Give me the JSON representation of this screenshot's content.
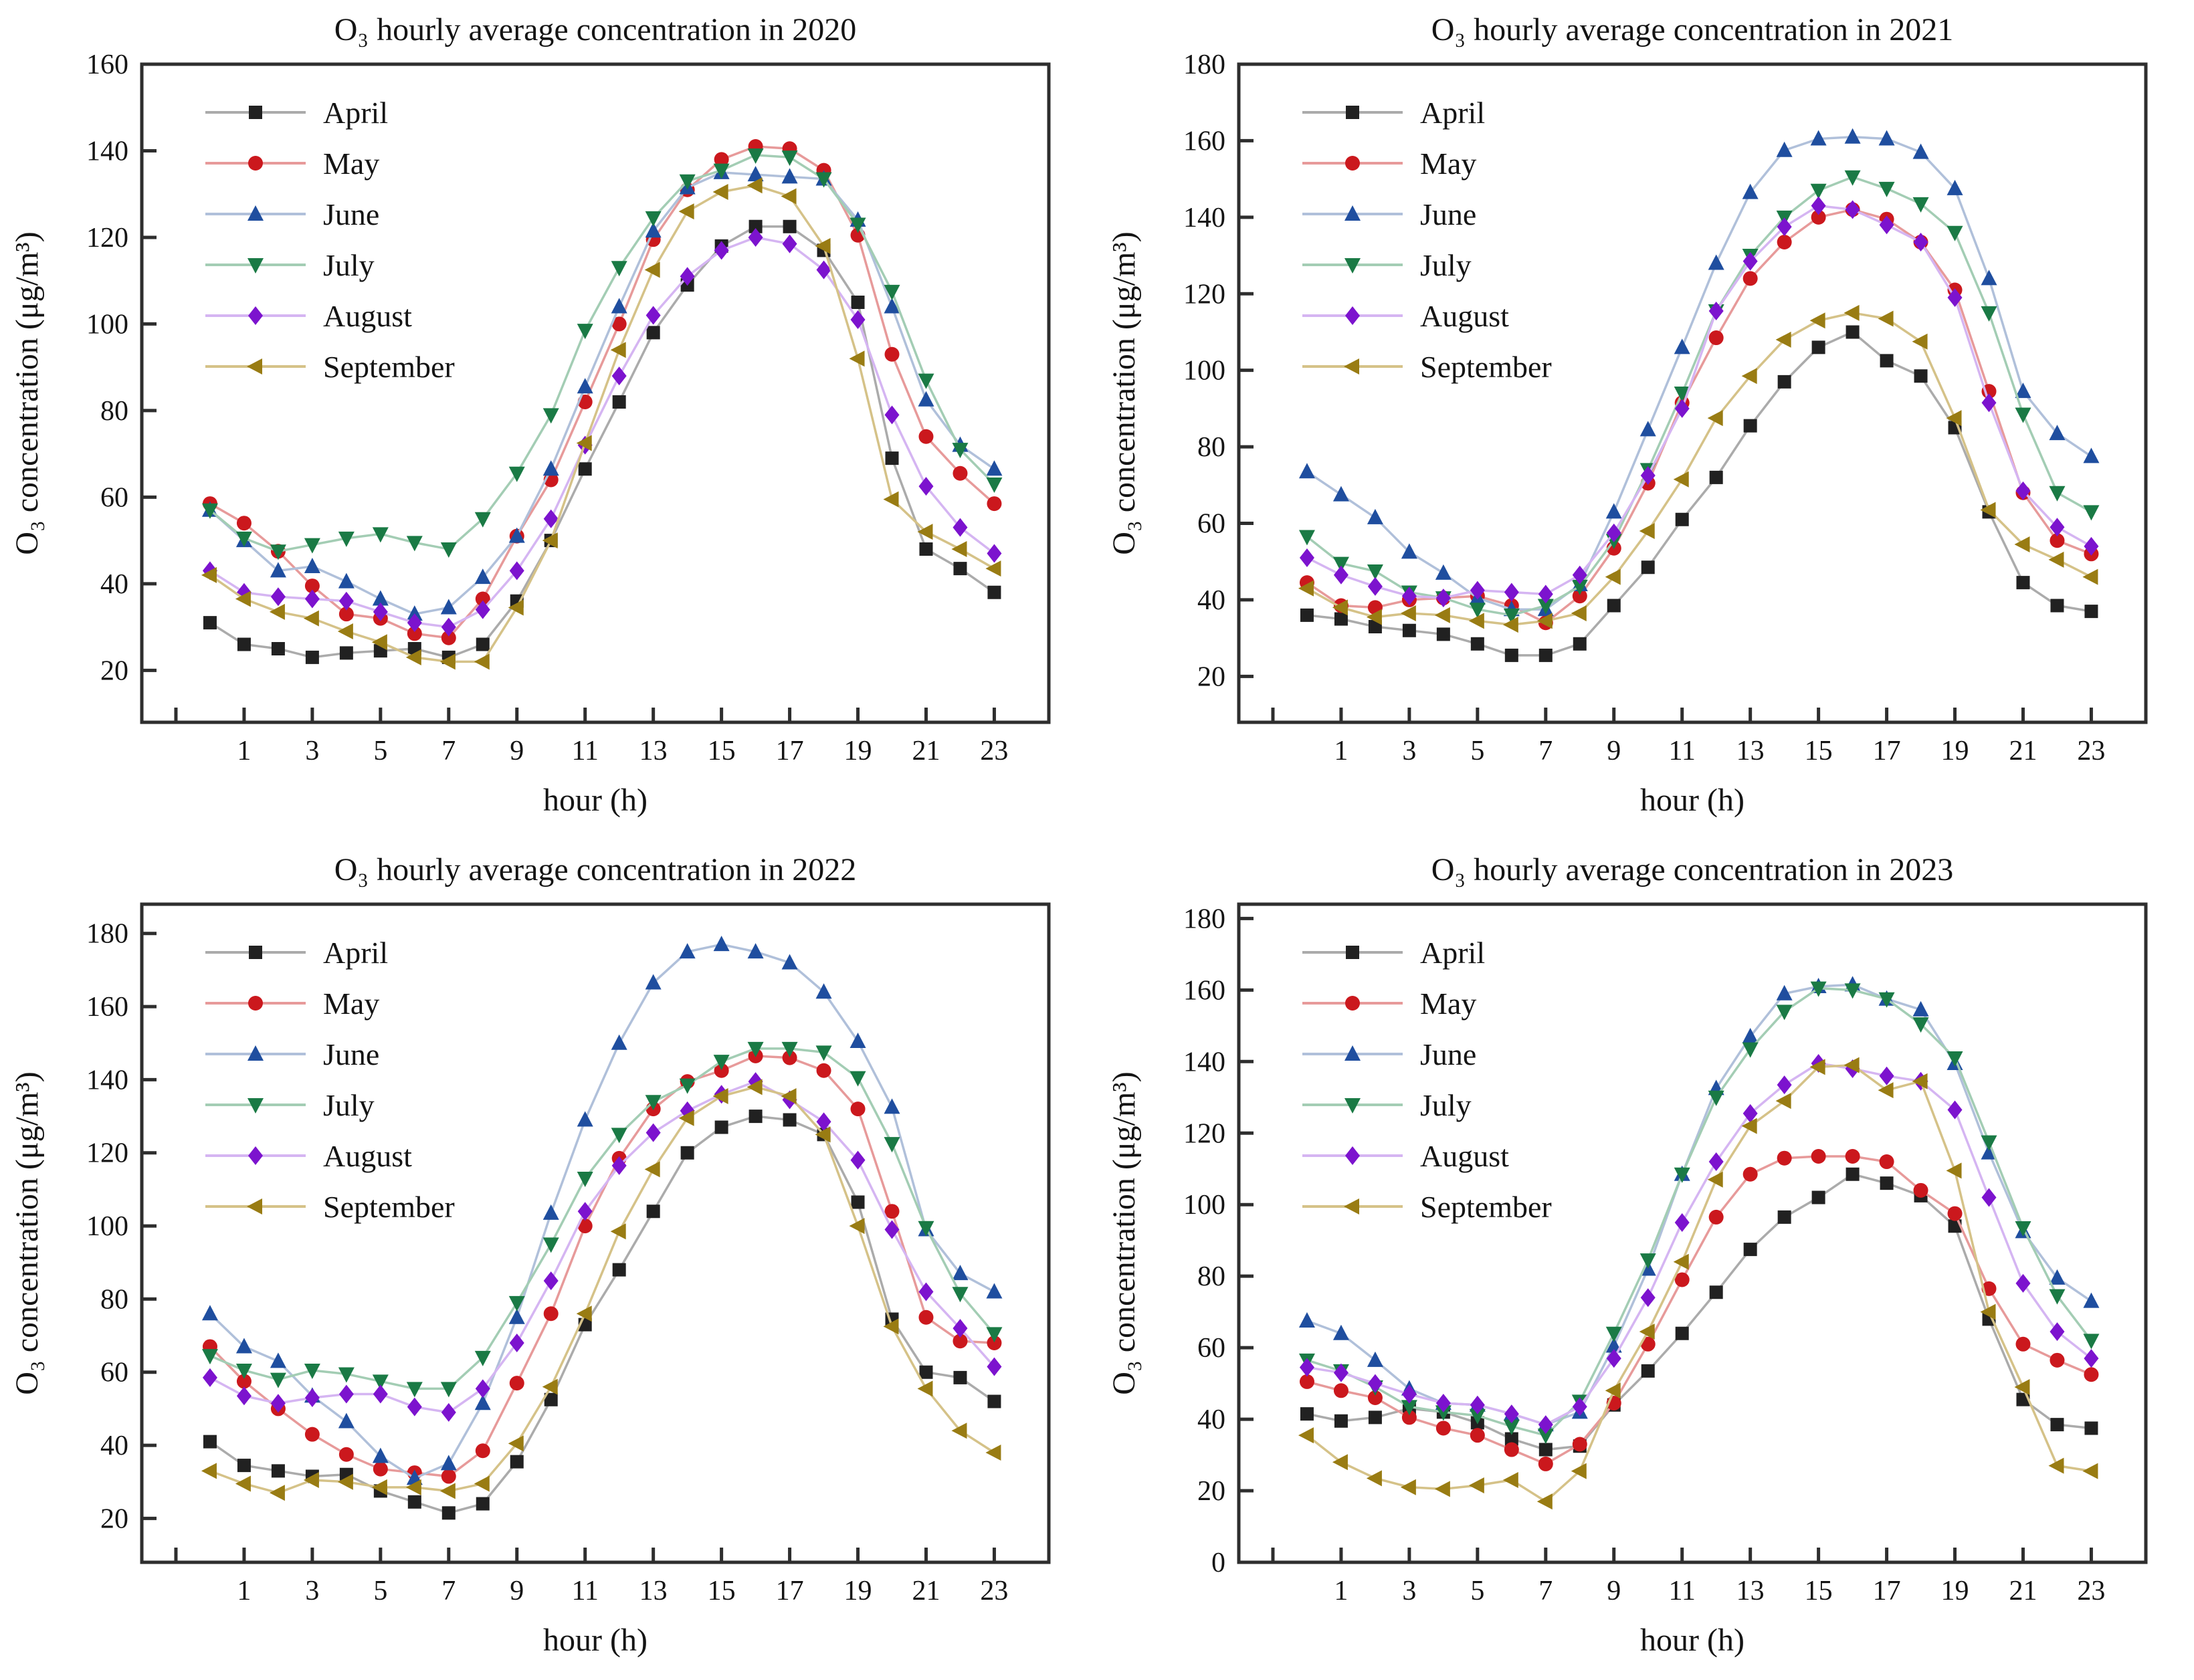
{
  "figure": {
    "xlabel": "hour (h)",
    "ylabel": "O₃ concentration (μg/m³)",
    "axis_color": "#2e2e2e",
    "text_color": "#141414"
  },
  "months_style": [
    {
      "name": "April",
      "marker": "square",
      "marker_color": "#212121",
      "line_color": "#ababab"
    },
    {
      "name": "May",
      "marker": "circle",
      "marker_color": "#cb181d",
      "line_color": "#e79a9a"
    },
    {
      "name": "June",
      "marker": "triangle-up",
      "marker_color": "#1f4e9f",
      "line_color": "#b0c0da"
    },
    {
      "name": "July",
      "marker": "triangle-down",
      "marker_color": "#1a7a45",
      "line_color": "#a3cdb4"
    },
    {
      "name": "August",
      "marker": "diamond",
      "marker_color": "#7c13ce",
      "line_color": "#d5b5f2"
    },
    {
      "name": "September",
      "marker": "triangle-left",
      "marker_color": "#997c13",
      "line_color": "#d5c288"
    }
  ],
  "chart_data": [
    {
      "type": "line",
      "title": "O₃ hourly average concentration in 2020",
      "xlabel": "hour (h)",
      "ylabel": "O₃ concentration (μg/m³)",
      "x": [
        0,
        1,
        2,
        3,
        4,
        5,
        6,
        7,
        8,
        9,
        10,
        11,
        12,
        13,
        14,
        15,
        16,
        17,
        18,
        19,
        20,
        21,
        22,
        23
      ],
      "xtick_labels": [
        1,
        3,
        5,
        7,
        9,
        11,
        13,
        15,
        17,
        19,
        21,
        23
      ],
      "ylim": [
        8,
        160
      ],
      "yticks": [
        20,
        40,
        60,
        80,
        100,
        120,
        140,
        160
      ],
      "legend_position": "upper-left",
      "grid": false,
      "series": [
        {
          "name": "April",
          "values": [
            31,
            26,
            25,
            23,
            24,
            24.5,
            25,
            23,
            26,
            36,
            50,
            66.5,
            82,
            98,
            109,
            118,
            122.5,
            122.5,
            117,
            105,
            69,
            48,
            43.5,
            38
          ]
        },
        {
          "name": "May",
          "values": [
            58.5,
            54,
            47.5,
            39.5,
            33,
            32,
            28.5,
            27.5,
            36.5,
            51,
            64,
            82,
            100,
            119.5,
            131,
            138,
            141,
            140.5,
            135.5,
            120.5,
            93,
            74,
            65.5,
            58.5
          ]
        },
        {
          "name": "June",
          "values": [
            57,
            50,
            43,
            44,
            40.5,
            36.5,
            33,
            34.5,
            41.5,
            51,
            66.5,
            85.5,
            104,
            121.5,
            131.5,
            135,
            134.5,
            134,
            133.5,
            124,
            104,
            82.5,
            72,
            66.5
          ]
        },
        {
          "name": "July",
          "values": [
            57,
            50.5,
            47.5,
            49,
            50.5,
            51.5,
            49.5,
            48,
            55,
            65.5,
            79,
            98.5,
            113,
            124.5,
            133,
            135.5,
            139,
            138.5,
            133.5,
            123,
            107.5,
            87,
            71,
            63
          ]
        },
        {
          "name": "August",
          "values": [
            43,
            38,
            37,
            36.5,
            36,
            33.5,
            31,
            30,
            34,
            43,
            55,
            72,
            88,
            102,
            111,
            117,
            120,
            118.5,
            112.5,
            101,
            79,
            62.5,
            53,
            47
          ]
        },
        {
          "name": "September",
          "values": [
            42,
            36.5,
            33.5,
            32,
            29,
            26.5,
            23,
            22,
            22,
            34.5,
            50,
            72.5,
            94,
            112.5,
            126,
            130.5,
            132,
            129.5,
            118,
            92,
            59.5,
            52,
            48,
            43.5
          ]
        }
      ]
    },
    {
      "type": "line",
      "title": "O₃ hourly average concentration in 2021",
      "xlabel": "hour (h)",
      "ylabel": "O₃ concentration (μg/m³)",
      "x": [
        0,
        1,
        2,
        3,
        4,
        5,
        6,
        7,
        8,
        9,
        10,
        11,
        12,
        13,
        14,
        15,
        16,
        17,
        18,
        19,
        20,
        21,
        22,
        23
      ],
      "xtick_labels": [
        1,
        3,
        5,
        7,
        9,
        11,
        13,
        15,
        17,
        19,
        21,
        23
      ],
      "ylim": [
        8,
        180
      ],
      "yticks": [
        20,
        40,
        60,
        80,
        100,
        120,
        140,
        160,
        180
      ],
      "legend_position": "upper-left",
      "grid": false,
      "series": [
        {
          "name": "April",
          "values": [
            36,
            35,
            33,
            32,
            31,
            28.5,
            25.5,
            25.5,
            28.5,
            38.5,
            48.5,
            61,
            72,
            85.5,
            97,
            106,
            110,
            102.5,
            98.5,
            85,
            63,
            44.5,
            38.5,
            37
          ]
        },
        {
          "name": "May",
          "values": [
            44.5,
            38.5,
            38,
            40,
            40.5,
            41,
            38.5,
            34,
            41,
            53.5,
            70.5,
            91.5,
            108.5,
            124,
            133.5,
            140,
            142,
            139.5,
            133.5,
            121,
            94.5,
            68,
            55.5,
            52
          ]
        },
        {
          "name": "June",
          "values": [
            73.5,
            67.5,
            61.5,
            52.5,
            47,
            40.5,
            37.5,
            37.5,
            44,
            63,
            84.5,
            106,
            128,
            146.5,
            157.5,
            160.5,
            161,
            160.5,
            157,
            147.5,
            124,
            94.5,
            83.5,
            77.5
          ]
        },
        {
          "name": "July",
          "values": [
            56.5,
            49.5,
            47.5,
            42,
            40.5,
            37.5,
            36,
            38.5,
            43.5,
            55.5,
            74,
            94,
            115.5,
            130,
            140,
            147,
            150.5,
            147.5,
            143.5,
            136,
            115,
            88.5,
            68,
            63
          ]
        },
        {
          "name": "August",
          "values": [
            51,
            46.5,
            43.5,
            41,
            40.5,
            42.5,
            42,
            41.5,
            46.5,
            57.5,
            72.5,
            90,
            115.5,
            128.5,
            137.5,
            143,
            142,
            138,
            133.5,
            119,
            91.5,
            68.5,
            59,
            54
          ]
        },
        {
          "name": "September",
          "values": [
            43,
            38,
            35.5,
            36.5,
            36,
            34.5,
            33.5,
            34.5,
            36.5,
            46,
            58,
            71.5,
            87.5,
            98.5,
            108,
            113,
            115,
            113.5,
            107.5,
            87.5,
            63.5,
            54.5,
            50.5,
            46
          ]
        }
      ]
    },
    {
      "type": "line",
      "title": "O₃ hourly average concentration in 2022",
      "xlabel": "hour (h)",
      "ylabel": "O₃ concentration (μg/m³)",
      "x": [
        0,
        1,
        2,
        3,
        4,
        5,
        6,
        7,
        8,
        9,
        10,
        11,
        12,
        13,
        14,
        15,
        16,
        17,
        18,
        19,
        20,
        21,
        22,
        23
      ],
      "xtick_labels": [
        1,
        3,
        5,
        7,
        9,
        11,
        13,
        15,
        17,
        19,
        21,
        23
      ],
      "ylim": [
        8,
        188
      ],
      "yticks": [
        20,
        40,
        60,
        80,
        100,
        120,
        140,
        160,
        180
      ],
      "legend_position": "upper-left",
      "grid": false,
      "series": [
        {
          "name": "April",
          "values": [
            41,
            34.5,
            33,
            31.5,
            32,
            27.5,
            24.5,
            21.5,
            24,
            35.5,
            52.5,
            73,
            88,
            104,
            120,
            127,
            130,
            129,
            125,
            106.5,
            74.5,
            60,
            58.5,
            52
          ]
        },
        {
          "name": "May",
          "values": [
            67,
            57.5,
            50,
            43,
            37.5,
            33.5,
            32.5,
            31.5,
            38.5,
            57,
            76,
            100,
            118.5,
            132,
            139.5,
            142.5,
            146.5,
            146,
            142.5,
            132,
            104,
            75,
            68.5,
            68
          ]
        },
        {
          "name": "June",
          "values": [
            76,
            67,
            63,
            53.5,
            46.5,
            37,
            31,
            35,
            51.5,
            75,
            103.5,
            129,
            150,
            166.5,
            175,
            177,
            175,
            172,
            164,
            150.5,
            132.5,
            99,
            87,
            82
          ]
        },
        {
          "name": "July",
          "values": [
            64.5,
            60.5,
            58,
            60.5,
            59.5,
            57.5,
            55.5,
            55.5,
            64,
            79,
            95,
            113,
            125,
            134,
            138.5,
            145,
            148.5,
            148.5,
            147.5,
            140.5,
            122.5,
            99.5,
            81.5,
            70.5
          ]
        },
        {
          "name": "August",
          "values": [
            58.5,
            53.5,
            51.5,
            53,
            54,
            54,
            50.5,
            49,
            55.5,
            68,
            85,
            104,
            116.5,
            125.5,
            131.5,
            136,
            139.5,
            134.5,
            128.5,
            118,
            99,
            82,
            72,
            61.5
          ]
        },
        {
          "name": "September",
          "values": [
            33,
            29.5,
            27,
            30.5,
            30,
            28.5,
            28.5,
            27.5,
            29.5,
            40.5,
            56,
            76,
            98.5,
            115.5,
            129.5,
            135.5,
            138,
            135.5,
            125,
            100,
            72.5,
            55.5,
            44,
            38
          ]
        }
      ]
    },
    {
      "type": "line",
      "title": "O₃ hourly average concentration in 2023",
      "xlabel": "hour (h)",
      "ylabel": "O₃ concentration (μg/m³)",
      "x": [
        0,
        1,
        2,
        3,
        4,
        5,
        6,
        7,
        8,
        9,
        10,
        11,
        12,
        13,
        14,
        15,
        16,
        17,
        18,
        19,
        20,
        21,
        22,
        23
      ],
      "xtick_labels": [
        1,
        3,
        5,
        7,
        9,
        11,
        13,
        15,
        17,
        19,
        21,
        23
      ],
      "ylim": [
        0,
        184
      ],
      "yticks": [
        0,
        20,
        40,
        60,
        80,
        100,
        120,
        140,
        160,
        180
      ],
      "legend_position": "upper-left",
      "grid": false,
      "series": [
        {
          "name": "April",
          "values": [
            41.5,
            39.5,
            40.5,
            43,
            42,
            39,
            34.5,
            31.5,
            32.5,
            44,
            53.5,
            64,
            75.5,
            87.5,
            96.5,
            102,
            108.5,
            106,
            102.5,
            94,
            68,
            45.5,
            38.5,
            37.5
          ]
        },
        {
          "name": "May",
          "values": [
            50.5,
            48,
            46,
            40.5,
            37.5,
            35.5,
            31.5,
            27.5,
            33,
            44.5,
            61,
            79,
            96.5,
            108.5,
            113,
            113.5,
            113.5,
            112,
            104,
            97.5,
            76.5,
            61,
            56.5,
            52.5
          ]
        },
        {
          "name": "June",
          "values": [
            67.5,
            64,
            56.5,
            48.5,
            44.5,
            44,
            41.5,
            38.5,
            42,
            60.5,
            82,
            108.5,
            132.5,
            147,
            159,
            161,
            161.5,
            157.5,
            154.5,
            139.5,
            114.5,
            92.5,
            79.5,
            73
          ]
        },
        {
          "name": "July",
          "values": [
            56.5,
            53.5,
            49,
            43.5,
            42,
            41,
            38,
            35.5,
            45,
            64,
            84.5,
            108.5,
            130,
            143.5,
            154,
            160.5,
            160,
            157.5,
            150.5,
            141,
            117.5,
            93.5,
            74.5,
            62
          ]
        },
        {
          "name": "August",
          "values": [
            54.5,
            53,
            50,
            47,
            44.5,
            44,
            41.5,
            38.5,
            43.5,
            57,
            74,
            95,
            112,
            125.5,
            133.5,
            139.5,
            138,
            136,
            134.5,
            126.5,
            102,
            78,
            64.5,
            57
          ]
        },
        {
          "name": "September",
          "values": [
            35.5,
            28,
            23.5,
            21,
            20.5,
            21.5,
            23,
            17,
            25.5,
            48,
            64.5,
            84,
            107,
            122,
            129,
            138.5,
            139,
            132,
            134.5,
            109.5,
            70,
            49,
            27,
            25.5
          ]
        }
      ]
    }
  ]
}
